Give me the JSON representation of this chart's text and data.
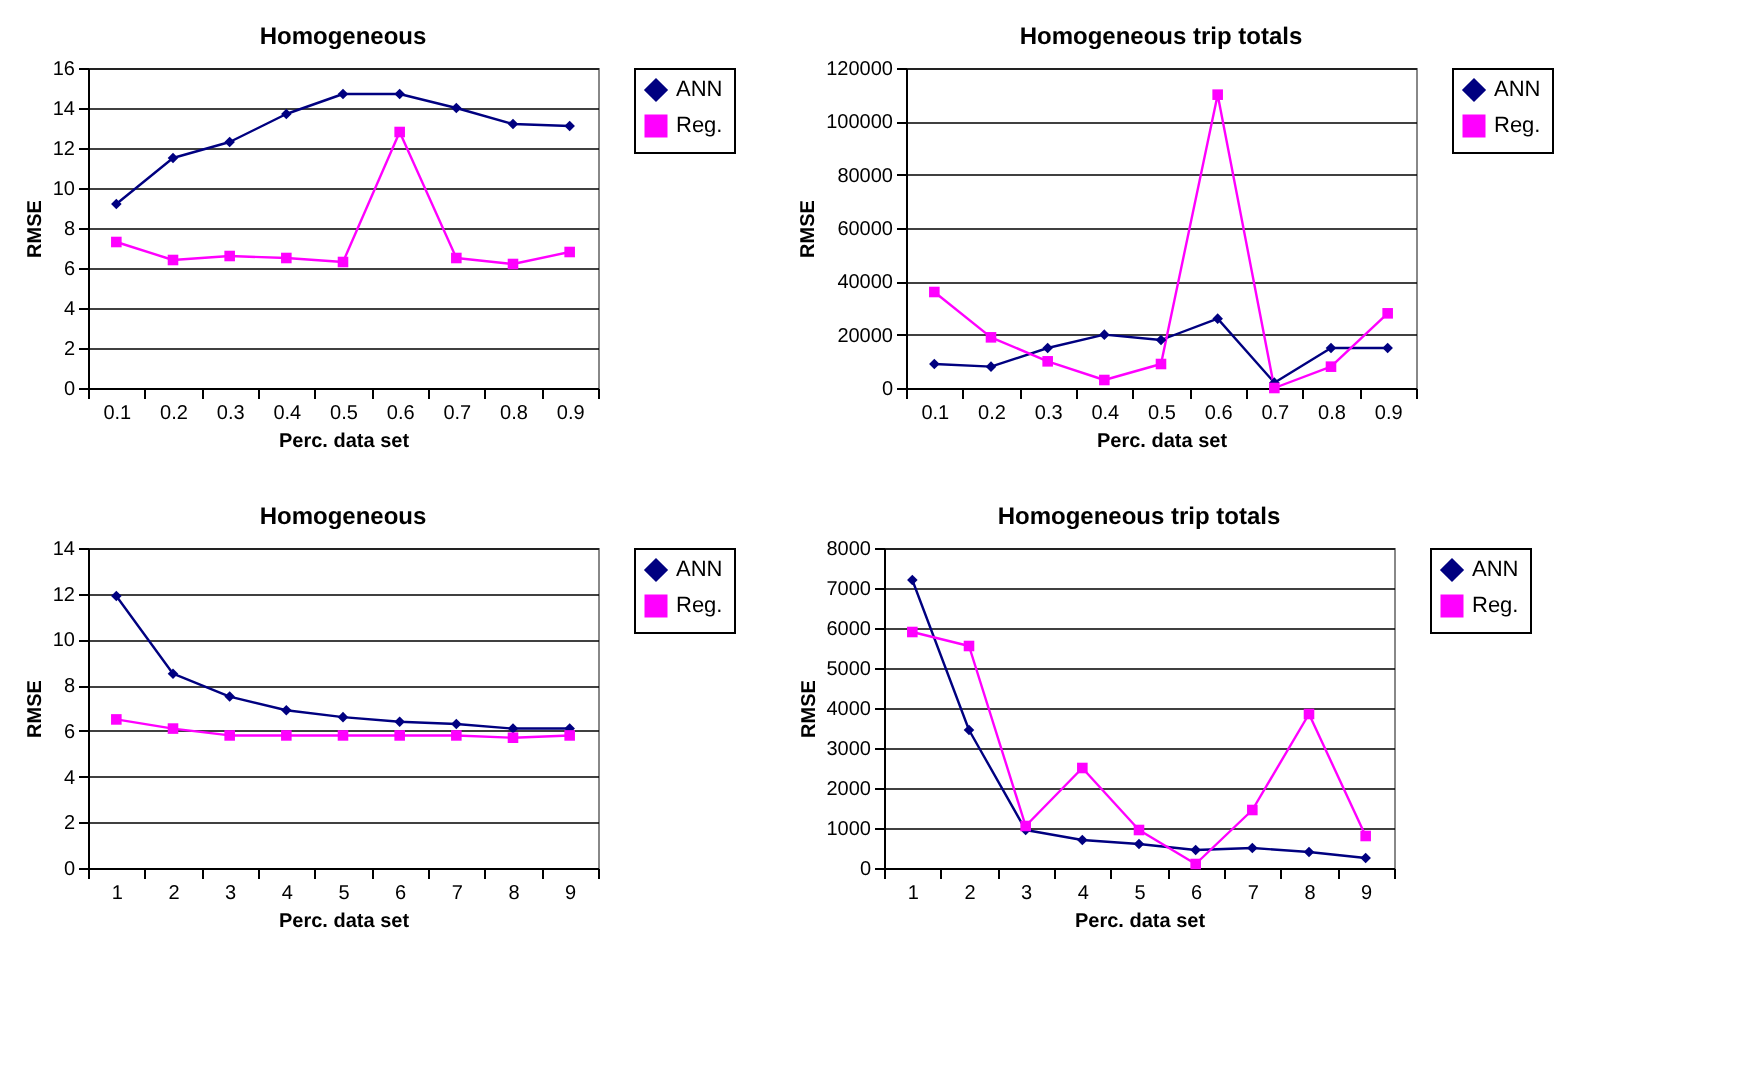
{
  "chart_data": [
    {
      "type": "line",
      "title": "Homogeneous",
      "xlabel": "Perc. data set",
      "ylabel": "RMSE",
      "categories": [
        "0.1",
        "0.2",
        "0.3",
        "0.4",
        "0.5",
        "0.6",
        "0.7",
        "0.8",
        "0.9"
      ],
      "ylim": [
        0,
        16
      ],
      "yticks": [
        0,
        2,
        4,
        6,
        8,
        10,
        12,
        14,
        16
      ],
      "grid": "y",
      "legend": "right",
      "series": [
        {
          "name": "ANN",
          "color": "#000080",
          "marker": "diamond",
          "values": [
            9.2,
            11.5,
            12.3,
            13.7,
            14.7,
            14.7,
            14.0,
            13.2,
            13.1
          ]
        },
        {
          "name": "Reg.",
          "color": "#ff00ff",
          "marker": "square",
          "values": [
            7.3,
            6.4,
            6.6,
            6.5,
            6.3,
            12.8,
            6.5,
            6.2,
            6.8
          ]
        }
      ]
    },
    {
      "type": "line",
      "title": "Homogeneous trip totals",
      "xlabel": "Perc. data set",
      "ylabel": "RMSE",
      "categories": [
        "0.1",
        "0.2",
        "0.3",
        "0.4",
        "0.5",
        "0.6",
        "0.7",
        "0.8",
        "0.9"
      ],
      "ylim": [
        0,
        120000
      ],
      "yticks": [
        0,
        20000,
        40000,
        60000,
        80000,
        100000,
        120000
      ],
      "grid": "y",
      "legend": "right",
      "series": [
        {
          "name": "ANN",
          "color": "#000080",
          "marker": "diamond",
          "values": [
            9000,
            8000,
            15000,
            20000,
            18000,
            26000,
            2000,
            15000,
            15000
          ]
        },
        {
          "name": "Reg.",
          "color": "#ff00ff",
          "marker": "square",
          "values": [
            36000,
            19000,
            10000,
            3000,
            9000,
            110000,
            0,
            8000,
            28000
          ]
        }
      ]
    },
    {
      "type": "line",
      "title": "Homogeneous",
      "xlabel": "Perc. data set",
      "ylabel": "RMSE",
      "categories": [
        "1",
        "2",
        "3",
        "4",
        "5",
        "6",
        "7",
        "8",
        "9"
      ],
      "ylim": [
        0,
        14
      ],
      "yticks": [
        0,
        2,
        4,
        6,
        8,
        10,
        12,
        14
      ],
      "grid": "y",
      "legend": "right",
      "series": [
        {
          "name": "ANN",
          "color": "#000080",
          "marker": "diamond",
          "values": [
            11.9,
            8.5,
            7.5,
            6.9,
            6.6,
            6.4,
            6.3,
            6.1,
            6.1
          ]
        },
        {
          "name": "Reg.",
          "color": "#ff00ff",
          "marker": "square",
          "values": [
            6.5,
            6.1,
            5.8,
            5.8,
            5.8,
            5.8,
            5.8,
            5.7,
            5.8
          ]
        }
      ]
    },
    {
      "type": "line",
      "title": "Homogeneous trip totals",
      "xlabel": "Perc. data set",
      "ylabel": "RMSE",
      "categories": [
        "1",
        "2",
        "3",
        "4",
        "5",
        "6",
        "7",
        "8",
        "9"
      ],
      "ylim": [
        0,
        8000
      ],
      "yticks": [
        0,
        1000,
        2000,
        3000,
        4000,
        5000,
        6000,
        7000,
        8000
      ],
      "grid": "y",
      "legend": "right",
      "series": [
        {
          "name": "ANN",
          "color": "#000080",
          "marker": "diamond",
          "values": [
            7200,
            3450,
            950,
            700,
            600,
            450,
            500,
            400,
            250
          ]
        },
        {
          "name": "Reg.",
          "color": "#ff00ff",
          "marker": "square",
          "values": [
            5900,
            5550,
            1050,
            2500,
            950,
            100,
            1450,
            3850,
            800
          ]
        }
      ]
    }
  ]
}
